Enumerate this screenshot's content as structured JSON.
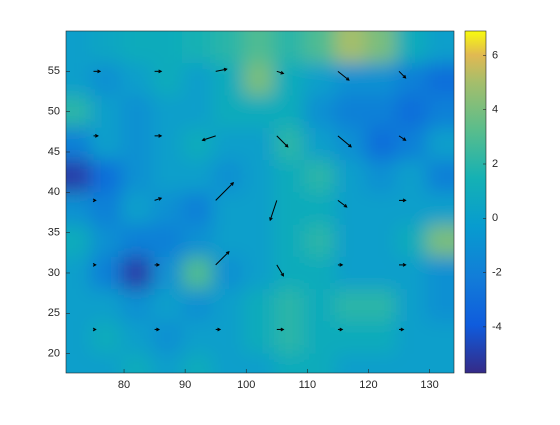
{
  "chart_data": {
    "type": "contour",
    "colormap": "parula",
    "x": [
      72,
      77,
      82,
      87,
      92,
      97,
      102,
      107,
      112,
      117,
      122,
      127,
      132
    ],
    "y": [
      58,
      54,
      50,
      46,
      42,
      38,
      34,
      30,
      26,
      22,
      18
    ],
    "z": [
      [
        0,
        0.5,
        1,
        1,
        1.5,
        2,
        3,
        2,
        3,
        5,
        4,
        1,
        0
      ],
      [
        0,
        -1,
        0,
        1,
        0,
        1,
        4,
        1,
        0,
        -1,
        -1,
        -2,
        -3
      ],
      [
        2,
        0,
        -1,
        0,
        0,
        1,
        1,
        1,
        -1,
        -2,
        -2,
        -3,
        -2
      ],
      [
        -2,
        0,
        -1,
        0,
        1,
        0,
        0,
        2,
        0,
        -1,
        -3,
        -2,
        0
      ],
      [
        -5,
        -3,
        -1,
        0,
        0,
        -1,
        0,
        1,
        2,
        0,
        -1,
        0,
        -2
      ],
      [
        -1,
        -2,
        0,
        -1,
        -2,
        0,
        0,
        1,
        1,
        0,
        0,
        0,
        0
      ],
      [
        1,
        -1,
        -2,
        -2,
        -1,
        0,
        0,
        1,
        2,
        0,
        0,
        1,
        4
      ],
      [
        0,
        -2,
        -5,
        -1,
        3,
        -1,
        0,
        1,
        1,
        0,
        0,
        0,
        -1
      ],
      [
        0,
        0,
        -1,
        0,
        -1,
        0,
        1,
        2,
        1,
        2,
        2,
        0,
        -1
      ],
      [
        0,
        1,
        0,
        -1,
        0,
        0,
        1,
        2,
        1,
        1,
        1,
        0,
        0
      ],
      [
        0,
        0,
        1,
        0,
        1,
        0,
        0,
        1,
        1,
        0,
        0,
        0,
        0
      ]
    ],
    "quiver": {
      "x": [
        75,
        85,
        95,
        105,
        115,
        125
      ],
      "y": [
        55,
        47,
        39,
        31,
        23
      ],
      "u": [
        [
          0.3,
          0.3,
          0.5,
          0.3,
          0.5,
          0.3
        ],
        [
          0.2,
          0.3,
          -0.6,
          0.5,
          0.6,
          0.3
        ],
        [
          0.1,
          0.3,
          0.8,
          -0.3,
          0.4,
          0.3
        ],
        [
          0.1,
          0.2,
          0.6,
          0.3,
          0.2,
          0.3
        ],
        [
          0.1,
          0.2,
          0.2,
          0.3,
          0.2,
          0.2
        ]
      ],
      "v": [
        [
          0,
          0,
          0.1,
          -0.1,
          -0.4,
          -0.3
        ],
        [
          0,
          0,
          -0.2,
          -0.5,
          -0.5,
          -0.2
        ],
        [
          0,
          0.1,
          0.8,
          -0.9,
          -0.3,
          0
        ],
        [
          0,
          0,
          0.6,
          -0.5,
          0,
          0
        ],
        [
          0,
          0,
          0,
          0,
          0,
          0
        ]
      ]
    },
    "xlim": [
      70.5,
      134
    ],
    "ylim": [
      17.6,
      60
    ],
    "xticks": [
      80,
      90,
      100,
      110,
      120,
      130
    ],
    "yticks": [
      20,
      25,
      30,
      35,
      40,
      45,
      50,
      55
    ],
    "clim": [
      -5.7,
      6.9
    ],
    "cticks": [
      -4,
      -2,
      0,
      2,
      4,
      6
    ]
  }
}
